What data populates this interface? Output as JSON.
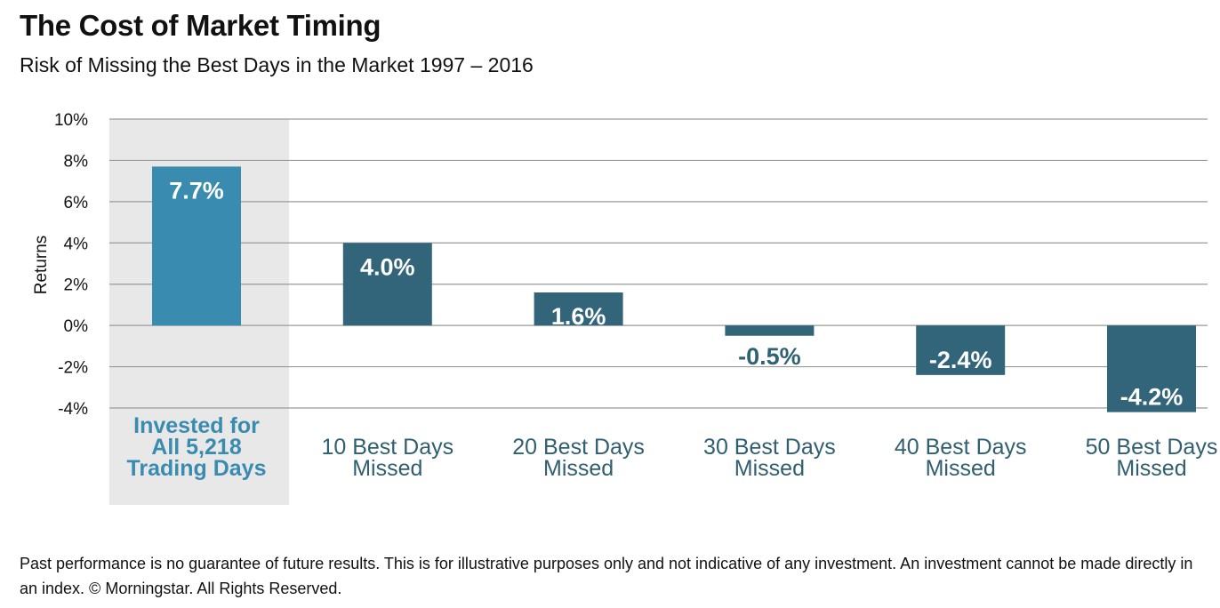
{
  "chart_data": {
    "type": "bar",
    "title": "The Cost of Market Timing",
    "subtitle": "Risk of Missing the Best Days in the Market 1997 – 2016",
    "ylabel": "Returns",
    "xlabel": "",
    "ylim": [
      -4,
      10
    ],
    "yticks": [
      10,
      8,
      6,
      4,
      2,
      0,
      -2,
      -4
    ],
    "ytick_labels": [
      "10%",
      "8%",
      "6%",
      "4%",
      "2%",
      "0%",
      "-2%",
      "-4%"
    ],
    "categories": [
      [
        "Invested for",
        "All 5,218",
        "Trading Days"
      ],
      [
        "10 Best Days",
        "Missed"
      ],
      [
        "20 Best Days",
        "Missed"
      ],
      [
        "30 Best Days",
        "Missed"
      ],
      [
        "40 Best Days",
        "Missed"
      ],
      [
        "50 Best Days",
        "Missed"
      ]
    ],
    "values": [
      7.7,
      4.0,
      1.6,
      -0.5,
      -2.4,
      -4.2
    ],
    "value_labels": [
      "7.7%",
      "4.0%",
      "1.6%",
      "-0.5%",
      "-2.4%",
      "-4.2%"
    ],
    "highlight_index": 0,
    "grid": true
  },
  "colors": {
    "highlight_bar": "#3a8bb0",
    "bar": "#33657a",
    "highlight_band": "#e8e8e8",
    "grid": "#9a9a9a"
  },
  "footnote": "Past performance is no guarantee of future results. This is for illustrative purposes only and not indicative of any investment. An investment cannot be made directly in an index. © Morningstar. All Rights Reserved."
}
